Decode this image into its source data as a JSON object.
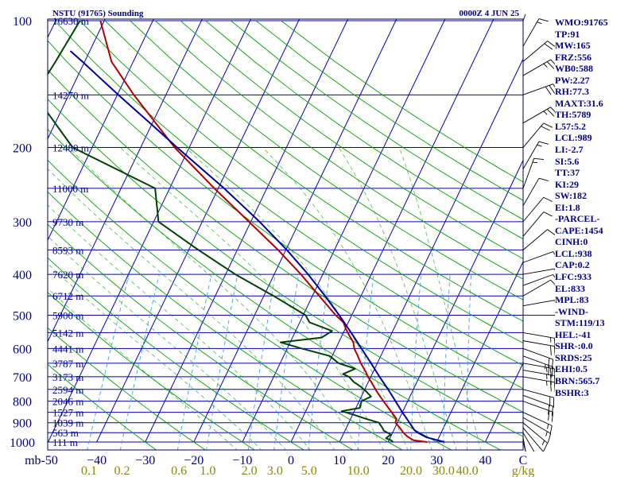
{
  "header": {
    "station": "NSTU (91765) Sounding",
    "time": "0000Z  4 JUN 25"
  },
  "stats": [
    "WMO:91765",
    "TP:91",
    "MW:165",
    "FRZ:556",
    "WB0:588",
    "PW:2.27",
    "RH:77.3",
    "MAXT:31.6",
    "TH:5789",
    "L57:5.2",
    "LCL:989",
    "LI:-2.7",
    "SI:5.6",
    "TT:37",
    "KI:29",
    "SW:182",
    "EI:1.8",
    "-PARCEL-",
    "CAPE:1454",
    "CINH:0",
    "LCL:938",
    "CAP:0.2",
    "LFC:933",
    "EL:833",
    "MPL:83",
    "-WIND-",
    "STM:119/13",
    "HEL:-41",
    "SHR-:0.0",
    "SRDS:25",
    "EHI:0.5",
    "BRN:565.7",
    "BSHR:3"
  ],
  "chart_data": {
    "type": "line",
    "title": "NSTU (91765) Sounding",
    "subtitle": "0000Z  4 JUN 25",
    "y_axis_unit": "mb",
    "x_axis_unit": "C",
    "mixing_ratio_unit": "g/kg",
    "pressure_ticks": [
      100,
      200,
      300,
      400,
      500,
      600,
      700,
      800,
      900,
      1000
    ],
    "pressure_tick_labels": [
      "100",
      "200",
      "300",
      "400",
      "500",
      "600",
      "700",
      "800",
      "900",
      "1000"
    ],
    "temperature_ticks": [
      -50,
      -40,
      -30,
      -20,
      -10,
      0,
      10,
      20,
      30,
      40
    ],
    "temperature_tick_labels": [
      "mb-50",
      "−40",
      "−30",
      "−20",
      "−10",
      "0",
      "10",
      "20",
      "30",
      "40"
    ],
    "temperature_end_label": "C",
    "mixing_ratio_labels": [
      "0.1",
      "0.2",
      "0.6",
      "1.0",
      "2.0",
      "3.0",
      "5.0",
      "10.0",
      "20.0",
      "30.0",
      "40.0"
    ],
    "mixing_ratio_unit_label": "g/kg",
    "height_levels": [
      {
        "p": 100,
        "label": "16630 m"
      },
      {
        "p": 150,
        "label": "14270 m"
      },
      {
        "p": 200,
        "label": "12480 m"
      },
      {
        "p": 250,
        "label": "11000 m"
      },
      {
        "p": 300,
        "label": "9730 m"
      },
      {
        "p": 350,
        "label": "8593 m"
      },
      {
        "p": 400,
        "label": "7620 m"
      },
      {
        "p": 450,
        "label": "6712 m"
      },
      {
        "p": 500,
        "label": "5900 m"
      },
      {
        "p": 550,
        "label": "5142 m"
      },
      {
        "p": 600,
        "label": "4441 m"
      },
      {
        "p": 650,
        "label": "3787 m"
      },
      {
        "p": 700,
        "label": "3173 m"
      },
      {
        "p": 750,
        "label": "2594 m"
      },
      {
        "p": 800,
        "label": "2046 m"
      },
      {
        "p": 850,
        "label": "1527 m"
      },
      {
        "p": 900,
        "label": "1039 m"
      },
      {
        "p": 950,
        "label": "563 m"
      },
      {
        "p": 1000,
        "label": "111 m"
      }
    ],
    "series": [
      {
        "color": "#b00000",
        "points": [
          {
            "p": 1000,
            "t": 28
          },
          {
            "p": 990,
            "t": 25
          },
          {
            "p": 970,
            "t": 23.4
          },
          {
            "p": 950,
            "t": 22.2
          },
          {
            "p": 925,
            "t": 21
          },
          {
            "p": 900,
            "t": 19.6
          },
          {
            "p": 880,
            "t": 19.4
          },
          {
            "p": 850,
            "t": 17.8
          },
          {
            "p": 800,
            "t": 15
          },
          {
            "p": 775,
            "t": 13.6
          },
          {
            "p": 750,
            "t": 12.2
          },
          {
            "p": 720,
            "t": 10.6
          },
          {
            "p": 700,
            "t": 9.4
          },
          {
            "p": 680,
            "t": 8.4
          },
          {
            "p": 650,
            "t": 6.6
          },
          {
            "p": 620,
            "t": 5
          },
          {
            "p": 600,
            "t": 3.8
          },
          {
            "p": 580,
            "t": 3
          },
          {
            "p": 560,
            "t": 1.6
          },
          {
            "p": 540,
            "t": 0.2
          },
          {
            "p": 520,
            "t": -1
          },
          {
            "p": 500,
            "t": -3.3
          },
          {
            "p": 450,
            "t": -8.6
          },
          {
            "p": 400,
            "t": -14.5
          },
          {
            "p": 350,
            "t": -21.6
          },
          {
            "p": 300,
            "t": -30.4
          },
          {
            "p": 250,
            "t": -40.8
          },
          {
            "p": 200,
            "t": -53
          },
          {
            "p": 150,
            "t": -66.6
          },
          {
            "p": 125,
            "t": -74.5
          },
          {
            "p": 100,
            "t": -80.8
          }
        ]
      },
      {
        "color": "#004000",
        "points": [
          {
            "p": 1000,
            "t": 21
          },
          {
            "p": 990,
            "t": 20.4
          },
          {
            "p": 980,
            "t": 19.2
          },
          {
            "p": 960,
            "t": 19.8
          },
          {
            "p": 940,
            "t": 18
          },
          {
            "p": 925,
            "t": 17.4
          },
          {
            "p": 900,
            "t": 16.2
          },
          {
            "p": 880,
            "t": 13
          },
          {
            "p": 860,
            "t": 10
          },
          {
            "p": 845,
            "t": 7.4
          },
          {
            "p": 830,
            "t": 10.8
          },
          {
            "p": 800,
            "t": 10.5
          },
          {
            "p": 780,
            "t": 12
          },
          {
            "p": 760,
            "t": 10.6
          },
          {
            "p": 740,
            "t": 9
          },
          {
            "p": 720,
            "t": 7
          },
          {
            "p": 700,
            "t": 5.5
          },
          {
            "p": 690,
            "t": 4
          },
          {
            "p": 670,
            "t": 6
          },
          {
            "p": 650,
            "t": 2
          },
          {
            "p": 625,
            "t": -0.5
          },
          {
            "p": 600,
            "t": -7
          },
          {
            "p": 580,
            "t": -12
          },
          {
            "p": 565,
            "t": -4
          },
          {
            "p": 545,
            "t": -2.5
          },
          {
            "p": 520,
            "t": -8
          },
          {
            "p": 500,
            "t": -9.5
          },
          {
            "p": 450,
            "t": -18
          },
          {
            "p": 400,
            "t": -28
          },
          {
            "p": 350,
            "t": -38
          },
          {
            "p": 300,
            "t": -49
          },
          {
            "p": 250,
            "t": -53
          },
          {
            "p": 200,
            "t": -74
          },
          {
            "p": 150,
            "t": -87
          },
          {
            "p": 125,
            "t": -86
          },
          {
            "p": 100,
            "t": -85
          }
        ]
      },
      {
        "color": "#00009a",
        "points": [
          {
            "p": 1000,
            "t": 31.6
          },
          {
            "p": 975,
            "t": 27.5
          },
          {
            "p": 950,
            "t": 25.2
          },
          {
            "p": 938,
            "t": 24.3
          },
          {
            "p": 900,
            "t": 22.5
          },
          {
            "p": 850,
            "t": 20
          },
          {
            "p": 800,
            "t": 17.5
          },
          {
            "p": 750,
            "t": 14.8
          },
          {
            "p": 700,
            "t": 11.8
          },
          {
            "p": 650,
            "t": 8.7
          },
          {
            "p": 600,
            "t": 5.3
          },
          {
            "p": 550,
            "t": 1.6
          },
          {
            "p": 500,
            "t": -2.6
          },
          {
            "p": 450,
            "t": -7.4
          },
          {
            "p": 400,
            "t": -13
          },
          {
            "p": 350,
            "t": -19.8
          },
          {
            "p": 300,
            "t": -28.2
          },
          {
            "p": 250,
            "t": -38.8
          },
          {
            "p": 200,
            "t": -52.5
          },
          {
            "p": 175,
            "t": -60.5
          },
          {
            "p": 150,
            "t": -69.8
          },
          {
            "p": 125,
            "t": -80.5
          },
          {
            "p": 118,
            "t": -84
          }
        ]
      }
    ],
    "wind_barbs": [
      {
        "p": 1000,
        "dir": 165,
        "spd": 5
      },
      {
        "p": 975,
        "dir": 170,
        "spd": 10
      },
      {
        "p": 950,
        "dir": 150,
        "spd": 10
      },
      {
        "p": 925,
        "dir": 140,
        "spd": 10
      },
      {
        "p": 900,
        "dir": 130,
        "spd": 15
      },
      {
        "p": 875,
        "dir": 120,
        "spd": 15
      },
      {
        "p": 850,
        "dir": 115,
        "spd": 15
      },
      {
        "p": 800,
        "dir": 110,
        "spd": 20
      },
      {
        "p": 775,
        "dir": 110,
        "spd": 20
      },
      {
        "p": 750,
        "dir": 105,
        "spd": 20
      },
      {
        "p": 700,
        "dir": 100,
        "spd": 25
      },
      {
        "p": 675,
        "dir": 100,
        "spd": 25
      },
      {
        "p": 650,
        "dir": 100,
        "spd": 25
      },
      {
        "p": 625,
        "dir": 110,
        "spd": 25
      },
      {
        "p": 600,
        "dir": 110,
        "spd": 20
      },
      {
        "p": 575,
        "dir": 100,
        "spd": 20
      },
      {
        "p": 550,
        "dir": 100,
        "spd": 15
      },
      {
        "p": 500,
        "dir": 90,
        "spd": 10
      },
      {
        "p": 475,
        "dir": 80,
        "spd": 10
      },
      {
        "p": 450,
        "dir": 60,
        "spd": 10
      },
      {
        "p": 425,
        "dir": 70,
        "spd": 10
      },
      {
        "p": 400,
        "dir": 80,
        "spd": 10
      },
      {
        "p": 375,
        "dir": 70,
        "spd": 10
      },
      {
        "p": 350,
        "dir": 50,
        "spd": 10
      },
      {
        "p": 325,
        "dir": 40,
        "spd": 10
      },
      {
        "p": 300,
        "dir": 40,
        "spd": 10
      },
      {
        "p": 275,
        "dir": 30,
        "spd": 10
      },
      {
        "p": 250,
        "dir": 20,
        "spd": 15
      },
      {
        "p": 225,
        "dir": 30,
        "spd": 15
      },
      {
        "p": 200,
        "dir": 40,
        "spd": 20
      },
      {
        "p": 175,
        "dir": 60,
        "spd": 25
      },
      {
        "p": 150,
        "dir": 70,
        "spd": 30
      },
      {
        "p": 135,
        "dir": 60,
        "spd": 25
      },
      {
        "p": 125,
        "dir": 50,
        "spd": 20
      },
      {
        "p": 115,
        "dir": 30,
        "spd": 15
      },
      {
        "p": 100,
        "dir": 20,
        "spd": 10
      }
    ],
    "colors": {
      "isobar": "#0000b0",
      "isotherm": "#0000b0",
      "dry_adiabat": "#00a000",
      "moist_adiabat": "#00a000",
      "mixing_ratio": "#40a0e0",
      "frame_labels": "#00008b",
      "bottom_labels": "#8a8a00",
      "barb": "#000000"
    }
  }
}
